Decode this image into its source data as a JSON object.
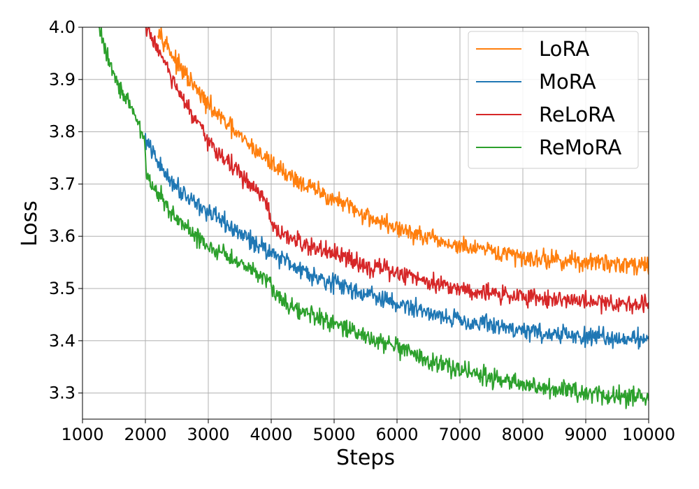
{
  "chart_data": {
    "type": "line",
    "title": "",
    "xlabel": "Steps",
    "ylabel": "Loss",
    "xlim": [
      1000,
      10000
    ],
    "ylim": [
      3.25,
      4.0
    ],
    "x_ticks": [
      1000,
      2000,
      3000,
      4000,
      5000,
      6000,
      7000,
      8000,
      9000,
      10000
    ],
    "y_ticks": [
      3.3,
      3.4,
      3.5,
      3.6,
      3.7,
      3.8,
      3.9,
      4.0
    ],
    "grid": true,
    "legend_position": "top-right",
    "series": [
      {
        "name": "LoRA",
        "color": "#ff7f0e",
        "x": [
          2200,
          2500,
          3000,
          3500,
          4000,
          4500,
          5000,
          5500,
          6000,
          6500,
          7000,
          7500,
          8000,
          8500,
          9000,
          9500,
          10000
        ],
        "values": [
          4.0,
          3.93,
          3.85,
          3.79,
          3.74,
          3.7,
          3.67,
          3.64,
          3.615,
          3.595,
          3.58,
          3.57,
          3.56,
          3.555,
          3.55,
          3.548,
          3.545
        ],
        "noise": 0.011
      },
      {
        "name": "MoRA",
        "color": "#1f77b4",
        "x": [
          2000,
          2250,
          2500,
          3000,
          3500,
          4000,
          4500,
          5000,
          5500,
          6000,
          6500,
          7000,
          7500,
          8000,
          8500,
          9000,
          9500,
          10000
        ],
        "values": [
          3.785,
          3.73,
          3.695,
          3.645,
          3.605,
          3.57,
          3.535,
          3.51,
          3.49,
          3.47,
          3.455,
          3.44,
          3.43,
          3.42,
          3.412,
          3.407,
          3.405,
          3.405
        ],
        "noise": 0.011
      },
      {
        "name": "ReLoRA",
        "color": "#d62728",
        "x": [
          2000,
          2200,
          2500,
          3000,
          3500,
          3950,
          4000,
          4050,
          4500,
          5000,
          5500,
          6000,
          6500,
          7000,
          7500,
          8000,
          8500,
          9000,
          9500,
          10000
        ],
        "values": [
          4.0,
          3.96,
          3.88,
          3.78,
          3.72,
          3.66,
          3.62,
          3.61,
          3.585,
          3.565,
          3.545,
          3.53,
          3.515,
          3.5,
          3.49,
          3.485,
          3.48,
          3.475,
          3.472,
          3.47
        ],
        "noise": 0.011
      },
      {
        "name": "ReMoRA",
        "color": "#2ca02c",
        "x": [
          1250,
          1500,
          1750,
          1980,
          2020,
          2500,
          3000,
          3500,
          3950,
          4050,
          4500,
          5000,
          5500,
          6000,
          6500,
          7000,
          7500,
          8000,
          8500,
          9000,
          9500,
          10000
        ],
        "values": [
          4.0,
          3.91,
          3.85,
          3.79,
          3.715,
          3.63,
          3.58,
          3.55,
          3.52,
          3.49,
          3.455,
          3.43,
          3.41,
          3.385,
          3.36,
          3.345,
          3.33,
          3.315,
          3.305,
          3.3,
          3.295,
          3.29
        ],
        "noise": 0.011
      }
    ]
  }
}
